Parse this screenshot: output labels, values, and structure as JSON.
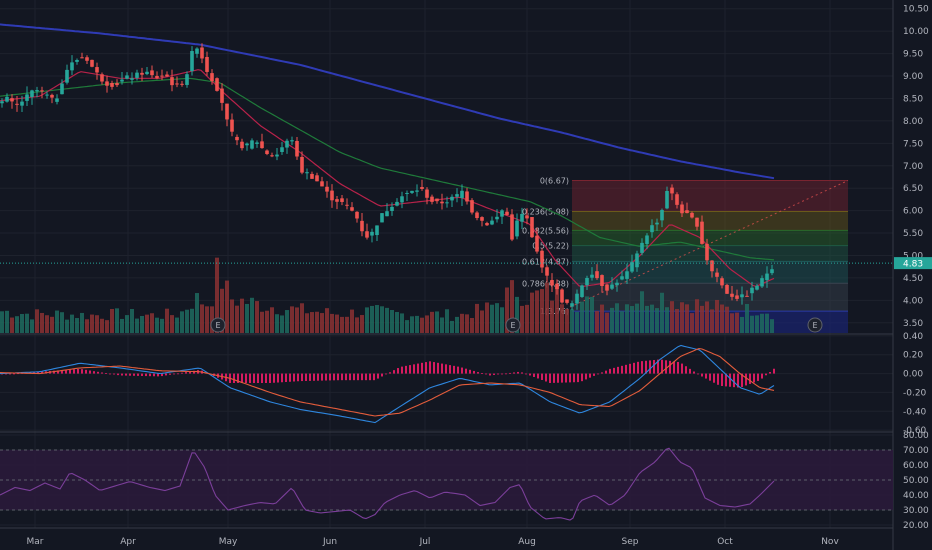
{
  "chart_data": {
    "type": "candlestick",
    "colors": {
      "background": "#131722",
      "grid": "#1e222d",
      "separator": "#363a45",
      "up": "#26a69a",
      "down": "#ef5350",
      "vol_up": "#1f6b5f",
      "vol_down": "#8c3133",
      "sma_long": "#2f3bb5",
      "ema_mid": "#1f7a3a",
      "ema_short": "#b8224a",
      "macd_line": "#2e86de",
      "macd_signal": "#e25c3b",
      "macd_hist": "#d81b60",
      "rsi_line": "#7b3f9a",
      "rsi_band": "#2a1a3a",
      "price_tag": "#26a69a"
    },
    "x_axis": {
      "months": [
        "Mar",
        "Apr",
        "May",
        "Jun",
        "Jul",
        "Aug",
        "Sep",
        "Oct",
        "Nov"
      ],
      "month_positions": [
        35,
        128,
        228,
        330,
        425,
        527,
        630,
        725,
        830
      ]
    },
    "price_axis": {
      "ticks": [
        "10.50",
        "10.00",
        "9.50",
        "9.00",
        "8.50",
        "8.00",
        "7.50",
        "7.00",
        "6.50",
        "6.00",
        "5.50",
        "5.00",
        "4.50",
        "4.00",
        "3.50"
      ],
      "range": [
        3.25,
        10.65
      ],
      "last_price": "4.83"
    },
    "macd_axis": {
      "ticks": [
        "0.40",
        "0.20",
        "0.00",
        "-0.20",
        "-0.40",
        "-0.60"
      ],
      "range": [
        -0.62,
        0.42
      ]
    },
    "rsi_axis": {
      "ticks": [
        "80.00",
        "70.00",
        "60.00",
        "50.00",
        "40.00",
        "30.00",
        "20.00"
      ],
      "range": [
        18,
        82
      ],
      "band": [
        30,
        70
      ]
    },
    "fibonacci": {
      "levels": [
        {
          "label": "0(6.67)",
          "price": 6.67,
          "color": "#7a2430"
        },
        {
          "label": "0.236(5.98)",
          "price": 5.98,
          "color": "#6b5a1a"
        },
        {
          "label": "0.382(5.56)",
          "price": 5.56,
          "color": "#2a6a2a"
        },
        {
          "label": "0.5(5.22)",
          "price": 5.22,
          "color": "#1f5a44"
        },
        {
          "label": "0.618(4.87)",
          "price": 4.87,
          "color": "#1f5a5a"
        },
        {
          "label": "0.786(4.38)",
          "price": 4.38,
          "color": "#3a4450"
        },
        {
          "label": "1(3.76)",
          "price": 3.76,
          "color": "#2b3aa6"
        }
      ]
    },
    "earnings_markers": {
      "label": "E",
      "positions": [
        218,
        513,
        815
      ]
    },
    "price_anchors": [
      [
        0,
        8.4
      ],
      [
        8,
        8.5
      ],
      [
        15,
        8.3
      ],
      [
        25,
        8.5
      ],
      [
        35,
        8.7
      ],
      [
        45,
        8.6
      ],
      [
        55,
        8.4
      ],
      [
        65,
        9.1
      ],
      [
        75,
        9.35
      ],
      [
        85,
        9.45
      ],
      [
        95,
        9.1
      ],
      [
        105,
        8.85
      ],
      [
        115,
        8.8
      ],
      [
        125,
        8.95
      ],
      [
        135,
        9.0
      ],
      [
        145,
        9.1
      ],
      [
        155,
        8.95
      ],
      [
        165,
        9.05
      ],
      [
        175,
        8.75
      ],
      [
        185,
        8.9
      ],
      [
        192,
        9.5
      ],
      [
        198,
        9.7
      ],
      [
        205,
        9.2
      ],
      [
        213,
        8.9
      ],
      [
        220,
        8.6
      ],
      [
        228,
        7.9
      ],
      [
        235,
        7.55
      ],
      [
        245,
        7.4
      ],
      [
        255,
        7.6
      ],
      [
        265,
        7.3
      ],
      [
        275,
        7.2
      ],
      [
        285,
        7.5
      ],
      [
        292,
        7.6
      ],
      [
        300,
        6.9
      ],
      [
        310,
        6.8
      ],
      [
        320,
        6.6
      ],
      [
        330,
        6.3
      ],
      [
        340,
        6.2
      ],
      [
        350,
        6.05
      ],
      [
        358,
        5.8
      ],
      [
        365,
        5.4
      ],
      [
        372,
        5.5
      ],
      [
        380,
        5.85
      ],
      [
        390,
        6.1
      ],
      [
        400,
        6.3
      ],
      [
        410,
        6.4
      ],
      [
        420,
        6.5
      ],
      [
        428,
        6.3
      ],
      [
        435,
        6.15
      ],
      [
        445,
        6.2
      ],
      [
        455,
        6.3
      ],
      [
        463,
        6.45
      ],
      [
        472,
        6.0
      ],
      [
        480,
        5.8
      ],
      [
        488,
        5.7
      ],
      [
        497,
        5.85
      ],
      [
        505,
        6.1
      ],
      [
        512,
        5.4
      ],
      [
        520,
        5.95
      ],
      [
        527,
        5.8
      ],
      [
        533,
        5.3
      ],
      [
        540,
        4.9
      ],
      [
        547,
        4.5
      ],
      [
        555,
        4.3
      ],
      [
        562,
        4.0
      ],
      [
        570,
        3.85
      ],
      [
        577,
        4.1
      ],
      [
        585,
        4.5
      ],
      [
        593,
        4.65
      ],
      [
        600,
        4.4
      ],
      [
        608,
        4.25
      ],
      [
        615,
        4.4
      ],
      [
        625,
        4.55
      ],
      [
        635,
        4.9
      ],
      [
        642,
        5.3
      ],
      [
        650,
        5.6
      ],
      [
        660,
        5.85
      ],
      [
        668,
        6.55
      ],
      [
        675,
        6.2
      ],
      [
        683,
        5.95
      ],
      [
        690,
        5.85
      ],
      [
        697,
        5.7
      ],
      [
        703,
        5.2
      ],
      [
        710,
        4.7
      ],
      [
        718,
        4.5
      ],
      [
        725,
        4.2
      ],
      [
        733,
        4.1
      ],
      [
        740,
        4.05
      ],
      [
        748,
        4.15
      ],
      [
        755,
        4.3
      ],
      [
        762,
        4.45
      ],
      [
        768,
        4.65
      ],
      [
        775,
        4.83
      ]
    ],
    "sma_long_anchors": [
      [
        0,
        10.15
      ],
      [
        100,
        9.95
      ],
      [
        200,
        9.7
      ],
      [
        300,
        9.25
      ],
      [
        400,
        8.65
      ],
      [
        500,
        8.05
      ],
      [
        560,
        7.75
      ],
      [
        620,
        7.4
      ],
      [
        680,
        7.1
      ],
      [
        740,
        6.85
      ],
      [
        775,
        6.72
      ]
    ],
    "ema_mid_anchors": [
      [
        0,
        8.55
      ],
      [
        60,
        8.7
      ],
      [
        120,
        8.85
      ],
      [
        190,
        8.95
      ],
      [
        220,
        8.85
      ],
      [
        260,
        8.3
      ],
      [
        300,
        7.8
      ],
      [
        340,
        7.3
      ],
      [
        380,
        6.95
      ],
      [
        420,
        6.75
      ],
      [
        460,
        6.55
      ],
      [
        500,
        6.35
      ],
      [
        530,
        6.2
      ],
      [
        560,
        5.9
      ],
      [
        600,
        5.4
      ],
      [
        640,
        5.2
      ],
      [
        680,
        5.3
      ],
      [
        720,
        5.1
      ],
      [
        750,
        4.95
      ],
      [
        775,
        4.9
      ]
    ],
    "ema_short_anchors": [
      [
        0,
        8.45
      ],
      [
        40,
        8.55
      ],
      [
        80,
        9.1
      ],
      [
        120,
        8.95
      ],
      [
        160,
        8.95
      ],
      [
        200,
        9.15
      ],
      [
        225,
        8.6
      ],
      [
        260,
        7.9
      ],
      [
        300,
        7.3
      ],
      [
        340,
        6.6
      ],
      [
        380,
        6.1
      ],
      [
        420,
        6.2
      ],
      [
        460,
        6.3
      ],
      [
        500,
        5.95
      ],
      [
        530,
        5.7
      ],
      [
        555,
        4.9
      ],
      [
        580,
        4.3
      ],
      [
        610,
        4.4
      ],
      [
        640,
        5.0
      ],
      [
        670,
        5.7
      ],
      [
        700,
        5.4
      ],
      [
        730,
        4.7
      ],
      [
        755,
        4.3
      ],
      [
        775,
        4.5
      ]
    ],
    "macd_anchors": [
      [
        0,
        0.0
      ],
      [
        40,
        0.02
      ],
      [
        80,
        0.11
      ],
      [
        120,
        0.06
      ],
      [
        160,
        0.0
      ],
      [
        200,
        0.06
      ],
      [
        230,
        -0.15
      ],
      [
        270,
        -0.3
      ],
      [
        300,
        -0.38
      ],
      [
        340,
        -0.45
      ],
      [
        375,
        -0.52
      ],
      [
        400,
        -0.35
      ],
      [
        430,
        -0.15
      ],
      [
        460,
        -0.05
      ],
      [
        490,
        -0.12
      ],
      [
        520,
        -0.1
      ],
      [
        550,
        -0.3
      ],
      [
        580,
        -0.42
      ],
      [
        610,
        -0.3
      ],
      [
        640,
        -0.05
      ],
      [
        660,
        0.15
      ],
      [
        680,
        0.3
      ],
      [
        700,
        0.25
      ],
      [
        720,
        0.05
      ],
      [
        740,
        -0.15
      ],
      [
        760,
        -0.22
      ],
      [
        775,
        -0.12
      ]
    ],
    "signal_anchors": [
      [
        0,
        0.01
      ],
      [
        40,
        0.0
      ],
      [
        80,
        0.06
      ],
      [
        120,
        0.08
      ],
      [
        160,
        0.03
      ],
      [
        200,
        0.02
      ],
      [
        230,
        -0.05
      ],
      [
        270,
        -0.2
      ],
      [
        300,
        -0.3
      ],
      [
        340,
        -0.38
      ],
      [
        375,
        -0.45
      ],
      [
        400,
        -0.42
      ],
      [
        430,
        -0.28
      ],
      [
        460,
        -0.12
      ],
      [
        490,
        -0.1
      ],
      [
        520,
        -0.12
      ],
      [
        550,
        -0.2
      ],
      [
        580,
        -0.33
      ],
      [
        610,
        -0.35
      ],
      [
        640,
        -0.18
      ],
      [
        660,
        0.0
      ],
      [
        680,
        0.18
      ],
      [
        700,
        0.27
      ],
      [
        720,
        0.18
      ],
      [
        740,
        0.0
      ],
      [
        760,
        -0.15
      ],
      [
        775,
        -0.18
      ]
    ],
    "rsi_anchors": [
      [
        0,
        40
      ],
      [
        15,
        45
      ],
      [
        30,
        43
      ],
      [
        45,
        48
      ],
      [
        60,
        44
      ],
      [
        70,
        55
      ],
      [
        85,
        50
      ],
      [
        100,
        43
      ],
      [
        115,
        46
      ],
      [
        130,
        49
      ],
      [
        150,
        45
      ],
      [
        165,
        43
      ],
      [
        180,
        46
      ],
      [
        193,
        70
      ],
      [
        205,
        58
      ],
      [
        215,
        40
      ],
      [
        228,
        30
      ],
      [
        245,
        33
      ],
      [
        260,
        35
      ],
      [
        275,
        34
      ],
      [
        292,
        45
      ],
      [
        305,
        30
      ],
      [
        320,
        28
      ],
      [
        335,
        29
      ],
      [
        350,
        30
      ],
      [
        365,
        24
      ],
      [
        375,
        27
      ],
      [
        385,
        35
      ],
      [
        400,
        40
      ],
      [
        415,
        43
      ],
      [
        430,
        38
      ],
      [
        445,
        42
      ],
      [
        465,
        40
      ],
      [
        480,
        33
      ],
      [
        495,
        35
      ],
      [
        510,
        45
      ],
      [
        520,
        47
      ],
      [
        530,
        32
      ],
      [
        545,
        24
      ],
      [
        560,
        25
      ],
      [
        572,
        23
      ],
      [
        580,
        36
      ],
      [
        595,
        40
      ],
      [
        610,
        33
      ],
      [
        625,
        40
      ],
      [
        640,
        55
      ],
      [
        655,
        62
      ],
      [
        668,
        72
      ],
      [
        680,
        62
      ],
      [
        692,
        58
      ],
      [
        705,
        38
      ],
      [
        720,
        33
      ],
      [
        735,
        32
      ],
      [
        750,
        34
      ],
      [
        760,
        40
      ],
      [
        775,
        50
      ]
    ],
    "volume_anchors": [
      [
        0,
        0.35
      ],
      [
        30,
        0.3
      ],
      [
        60,
        0.3
      ],
      [
        90,
        0.28
      ],
      [
        120,
        0.3
      ],
      [
        150,
        0.28
      ],
      [
        180,
        0.3
      ],
      [
        195,
        0.55
      ],
      [
        210,
        0.45
      ],
      [
        218,
        1.0
      ],
      [
        230,
        0.55
      ],
      [
        260,
        0.45
      ],
      [
        290,
        0.38
      ],
      [
        310,
        0.35
      ],
      [
        340,
        0.3
      ],
      [
        370,
        0.35
      ],
      [
        400,
        0.3
      ],
      [
        430,
        0.3
      ],
      [
        460,
        0.28
      ],
      [
        490,
        0.4
      ],
      [
        515,
        0.7
      ],
      [
        530,
        0.55
      ],
      [
        545,
        0.65
      ],
      [
        560,
        0.6
      ],
      [
        575,
        0.5
      ],
      [
        600,
        0.45
      ],
      [
        620,
        0.48
      ],
      [
        640,
        0.55
      ],
      [
        660,
        0.6
      ],
      [
        680,
        0.5
      ],
      [
        700,
        0.45
      ],
      [
        720,
        0.4
      ],
      [
        740,
        0.35
      ],
      [
        760,
        0.4
      ],
      [
        775,
        0.3
      ]
    ]
  }
}
